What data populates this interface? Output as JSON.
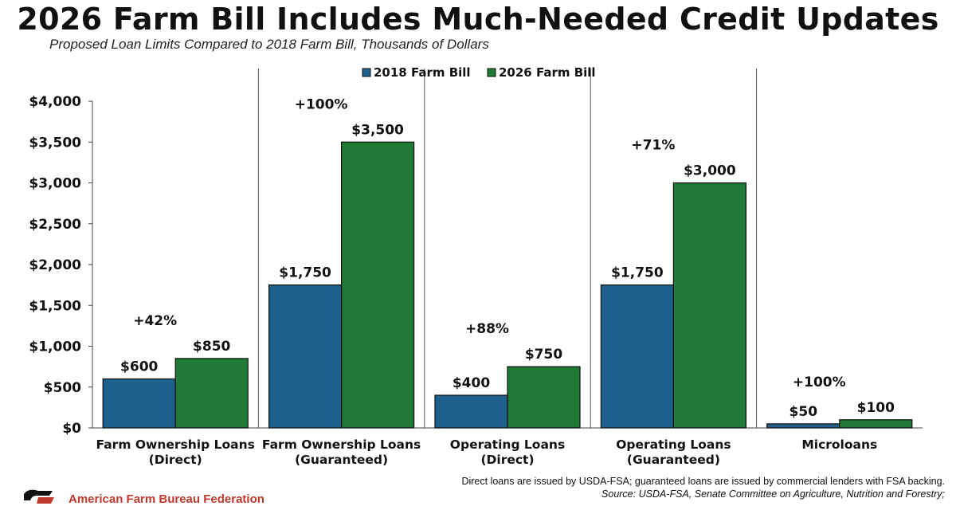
{
  "title": "2026 Farm Bill Includes Much-Needed Credit Updates",
  "subtitle": "Proposed Loan Limits Compared to 2018 Farm Bill, Thousands of Dollars",
  "colors": {
    "series_2018": "#1f5f8b",
    "series_2026": "#1e7a34",
    "divider": "#555555"
  },
  "chart_data": {
    "type": "bar",
    "categories": [
      [
        "Farm Ownership Loans",
        "(Direct)"
      ],
      [
        "Farm Ownership Loans",
        "(Guaranteed)"
      ],
      [
        "Operating Loans",
        "(Direct)"
      ],
      [
        "Operating Loans",
        "(Guaranteed)"
      ],
      [
        "Microloans"
      ]
    ],
    "series": [
      {
        "name": "2018 Farm Bill",
        "values": [
          600,
          1750,
          400,
          1750,
          50
        ]
      },
      {
        "name": "2026 Farm Bill",
        "values": [
          850,
          3500,
          750,
          3000,
          100
        ]
      }
    ],
    "value_labels": [
      [
        "$600",
        "$1,750",
        "$400",
        "$1,750",
        "$50"
      ],
      [
        "$850",
        "$3,500",
        "$750",
        "$3,000",
        "$100"
      ]
    ],
    "pct_change": [
      "+42%",
      "+100%",
      "+88%",
      "+71%",
      "+100%"
    ],
    "ylim": [
      0,
      4000
    ],
    "yticks": [
      0,
      500,
      1000,
      1500,
      2000,
      2500,
      3000,
      3500,
      4000
    ],
    "ytick_labels": [
      "$0",
      "$500",
      "$1,000",
      "$1,500",
      "$2,000",
      "$2,500",
      "$3,000",
      "$3,500",
      "$4,000"
    ],
    "legend_position": "top-center",
    "grid": false
  },
  "footnote": "Direct loans are issued by USDA-FSA; guaranteed loans are issued by commercial lenders with FSA backing.",
  "source": "Source: USDA-FSA, Senate Committee on Agriculture, Nutrition and Forestry;",
  "organization": "American Farm Bureau Federation"
}
